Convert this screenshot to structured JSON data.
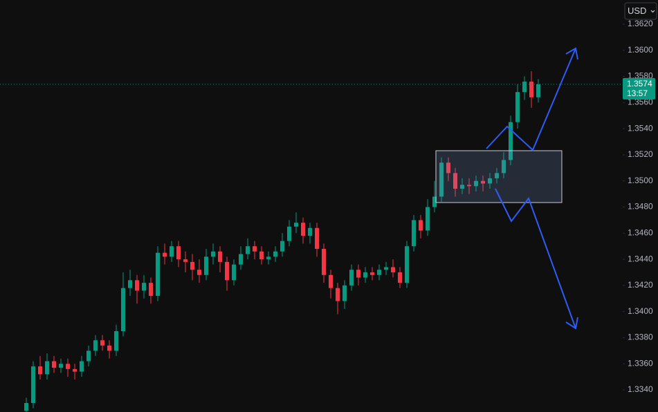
{
  "chart_data": {
    "type": "candlestick",
    "currency": "USD",
    "up_color": "#089981",
    "down_color": "#f23645",
    "ylim": [
      1.33231,
      1.36385
    ],
    "yticks": [
      {
        "value": 1.362,
        "label": "1.3620"
      },
      {
        "value": 1.36,
        "label": "1.3600"
      },
      {
        "value": 1.358,
        "label": "1.3580"
      },
      {
        "value": 1.356,
        "label": "1.3560"
      },
      {
        "value": 1.354,
        "label": "1.3540"
      },
      {
        "value": 1.352,
        "label": "1.3520"
      },
      {
        "value": 1.35,
        "label": "1.3500"
      },
      {
        "value": 1.348,
        "label": "1.3480"
      },
      {
        "value": 1.346,
        "label": "1.3460"
      },
      {
        "value": 1.344,
        "label": "1.3440"
      },
      {
        "value": 1.342,
        "label": "1.3420"
      },
      {
        "value": 1.34,
        "label": "1.3400"
      },
      {
        "value": 1.338,
        "label": "1.3380"
      },
      {
        "value": 1.336,
        "label": "1.3360"
      },
      {
        "value": 1.334,
        "label": "1.3340"
      }
    ],
    "last_price": {
      "value": 1.3574,
      "label": "1.3574"
    },
    "countdown": "13:57",
    "open": [
      1.3324,
      1.333,
      1.3358,
      1.3352,
      1.3362,
      1.3357,
      1.336,
      1.3356,
      1.3354,
      1.3362,
      1.337,
      1.3378,
      1.3374,
      1.337,
      1.3385,
      1.3418,
      1.3424,
      1.3416,
      1.3422,
      1.3412,
      1.3445,
      1.3442,
      1.345,
      1.344,
      1.3438,
      1.3432,
      1.3428,
      1.3442,
      1.3446,
      1.3438,
      1.3424,
      1.3436,
      1.3444,
      1.345,
      1.3446,
      1.344,
      1.3442,
      1.3446,
      1.3454,
      1.3465,
      1.3468,
      1.3458,
      1.3464,
      1.3448,
      1.3428,
      1.3418,
      1.3408,
      1.342,
      1.3432,
      1.3426,
      1.343,
      1.3428,
      1.3432,
      1.3434,
      1.343,
      1.3422,
      1.345,
      1.347,
      1.3462,
      1.348,
      1.3488,
      1.3514,
      1.3506,
      1.3494,
      1.3497,
      1.3496,
      1.35,
      1.3498,
      1.3502,
      1.3506,
      1.3516,
      1.3545,
      1.3568,
      1.3576,
      1.3564
    ],
    "high": [
      1.3334,
      1.3362,
      1.3366,
      1.3368,
      1.3366,
      1.3364,
      1.3364,
      1.336,
      1.3366,
      1.3374,
      1.3382,
      1.3382,
      1.3378,
      1.339,
      1.343,
      1.3432,
      1.3428,
      1.3428,
      1.3426,
      1.345,
      1.3452,
      1.3454,
      1.3454,
      1.3446,
      1.3444,
      1.344,
      1.3448,
      1.3452,
      1.345,
      1.3442,
      1.344,
      1.345,
      1.3456,
      1.3454,
      1.345,
      1.3446,
      1.345,
      1.346,
      1.347,
      1.3476,
      1.3472,
      1.3468,
      1.3468,
      1.3452,
      1.3432,
      1.3422,
      1.3424,
      1.3436,
      1.3436,
      1.3434,
      1.3434,
      1.3436,
      1.3438,
      1.344,
      1.3434,
      1.3454,
      1.3474,
      1.3474,
      1.3486,
      1.35,
      1.3518,
      1.3518,
      1.351,
      1.3502,
      1.3502,
      1.3504,
      1.3504,
      1.3506,
      1.351,
      1.3522,
      1.355,
      1.3574,
      1.358,
      1.3584,
      1.3578
    ],
    "low": [
      1.332,
      1.3326,
      1.3348,
      1.3348,
      1.3353,
      1.3353,
      1.335,
      1.3348,
      1.335,
      1.3358,
      1.3366,
      1.337,
      1.3364,
      1.3366,
      1.3381,
      1.3412,
      1.3406,
      1.341,
      1.3406,
      1.3408,
      1.3436,
      1.3438,
      1.3434,
      1.343,
      1.3424,
      1.3422,
      1.3424,
      1.3436,
      1.343,
      1.3416,
      1.342,
      1.3432,
      1.344,
      1.344,
      1.3436,
      1.3436,
      1.3438,
      1.3442,
      1.345,
      1.346,
      1.3452,
      1.3452,
      1.3442,
      1.3422,
      1.341,
      1.3398,
      1.3402,
      1.3416,
      1.342,
      1.3422,
      1.3424,
      1.3424,
      1.3428,
      1.3426,
      1.3418,
      1.3418,
      1.3446,
      1.3456,
      1.3458,
      1.3476,
      1.3484,
      1.35,
      1.3488,
      1.349,
      1.349,
      1.3492,
      1.3492,
      1.3494,
      1.3498,
      1.3502,
      1.3512,
      1.354,
      1.3562,
      1.3556,
      1.356
    ],
    "close": [
      1.333,
      1.3358,
      1.3352,
      1.3362,
      1.3357,
      1.336,
      1.3356,
      1.3354,
      1.3362,
      1.337,
      1.3378,
      1.3374,
      1.337,
      1.3385,
      1.3418,
      1.3424,
      1.3416,
      1.3422,
      1.3412,
      1.3445,
      1.3442,
      1.345,
      1.344,
      1.3438,
      1.3432,
      1.3428,
      1.3442,
      1.3446,
      1.3438,
      1.3424,
      1.3436,
      1.3444,
      1.345,
      1.3446,
      1.344,
      1.3442,
      1.3446,
      1.3454,
      1.3465,
      1.3468,
      1.3458,
      1.3464,
      1.3448,
      1.3428,
      1.3418,
      1.3408,
      1.342,
      1.3432,
      1.3426,
      1.343,
      1.3428,
      1.3432,
      1.3434,
      1.343,
      1.3422,
      1.345,
      1.347,
      1.3462,
      1.348,
      1.3488,
      1.3514,
      1.3506,
      1.3494,
      1.3497,
      1.3496,
      1.35,
      1.3498,
      1.3502,
      1.3506,
      1.3516,
      1.3545,
      1.3568,
      1.3576,
      1.3564,
      1.3574
    ]
  }
}
